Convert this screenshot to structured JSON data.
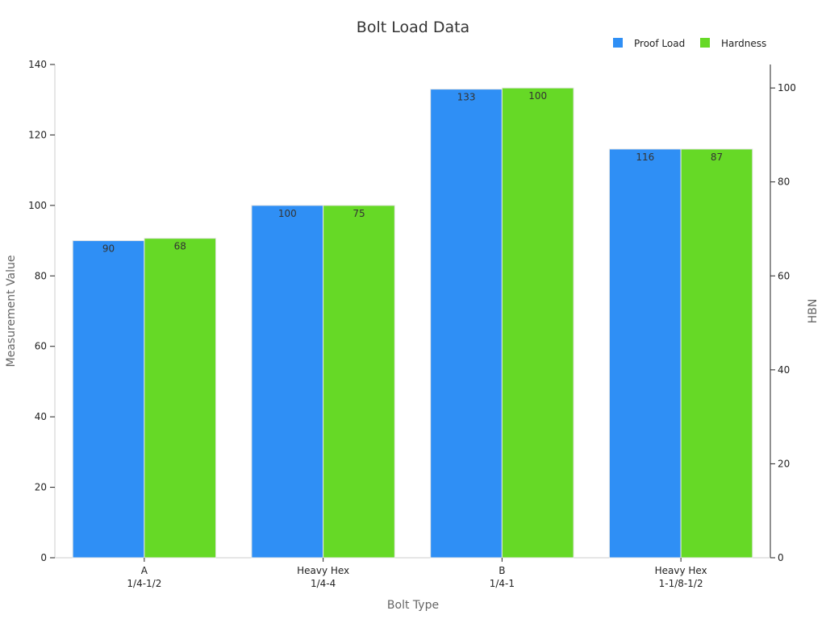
{
  "chart_data": {
    "type": "bar",
    "title": "Bolt Load Data",
    "xlabel": "Bolt Type",
    "ylabel": "Measurement Value",
    "y2label": "HBN",
    "categories": [
      [
        "A",
        "1/4-1/2"
      ],
      [
        "Heavy Hex",
        "1/4-4"
      ],
      [
        "B",
        "1/4-1"
      ],
      [
        "Heavy Hex",
        "1-1/8-1/2"
      ]
    ],
    "series": [
      {
        "name": "Proof Load",
        "axis": "left",
        "color": "#2f8ff5",
        "values": [
          90,
          100,
          133,
          116
        ]
      },
      {
        "name": "Hardness",
        "axis": "right",
        "color": "#66d926",
        "values": [
          68,
          75,
          100,
          87
        ]
      }
    ],
    "ylim": [
      0,
      140
    ],
    "yticks": [
      0,
      20,
      40,
      60,
      80,
      100,
      120,
      140
    ],
    "y2lim": [
      0,
      105
    ],
    "y2ticks": [
      0,
      20,
      40,
      60,
      80,
      100
    ],
    "legend": "top-right",
    "grid": false
  }
}
